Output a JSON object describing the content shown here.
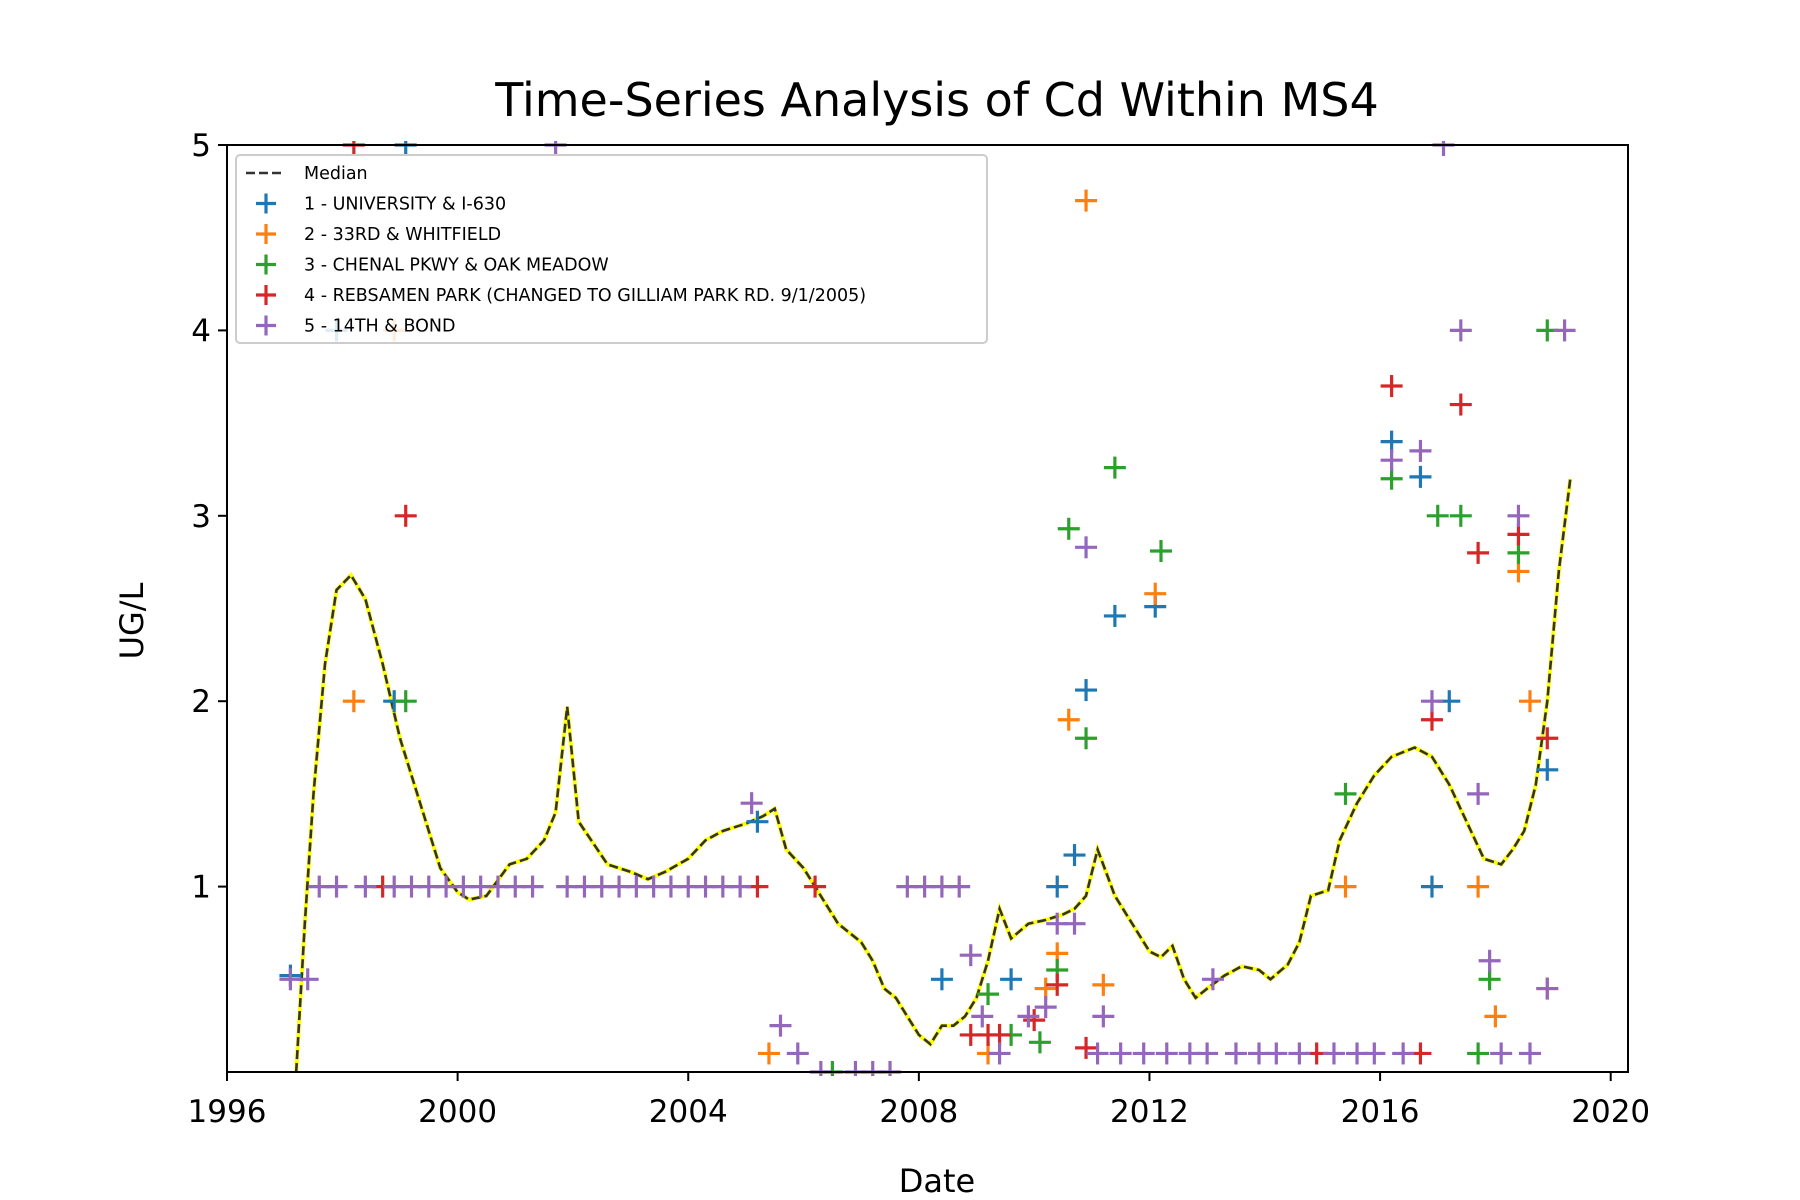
{
  "chart_data": {
    "type": "scatter",
    "title": "Time-Series Analysis of Cd Within MS4",
    "xlabel": "Date",
    "ylabel": "UG/L",
    "xlim": [
      1996,
      2020.3
    ],
    "ylim": [
      0,
      5
    ],
    "x_ticks": [
      1996,
      2000,
      2004,
      2008,
      2012,
      2016,
      2020
    ],
    "x_tick_labels": [
      "1996",
      "2000",
      "2004",
      "2008",
      "2012",
      "2016",
      "2020"
    ],
    "y_ticks": [
      1,
      2,
      3,
      4,
      5
    ],
    "y_tick_labels": [
      "1",
      "2",
      "3",
      "4",
      "5"
    ],
    "grid": false,
    "legend_position": "top-left",
    "median": {
      "name": "Median",
      "color": "#333333",
      "highlight_color": "#ffff00",
      "points": [
        [
          1997.2,
          0
        ],
        [
          1997.35,
          0.8
        ],
        [
          1997.5,
          1.5
        ],
        [
          1997.7,
          2.2
        ],
        [
          1997.9,
          2.6
        ],
        [
          1998.15,
          2.68
        ],
        [
          1998.4,
          2.55
        ],
        [
          1998.7,
          2.2
        ],
        [
          1999.0,
          1.8
        ],
        [
          1999.4,
          1.4
        ],
        [
          1999.7,
          1.1
        ],
        [
          2000.0,
          0.97
        ],
        [
          2000.2,
          0.93
        ],
        [
          2000.5,
          0.95
        ],
        [
          2000.9,
          1.12
        ],
        [
          2001.2,
          1.15
        ],
        [
          2001.5,
          1.25
        ],
        [
          2001.7,
          1.4
        ],
        [
          2001.9,
          1.97
        ],
        [
          2002.1,
          1.35
        ],
        [
          2002.6,
          1.12
        ],
        [
          2003.0,
          1.08
        ],
        [
          2003.3,
          1.04
        ],
        [
          2003.6,
          1.08
        ],
        [
          2004.0,
          1.15
        ],
        [
          2004.3,
          1.25
        ],
        [
          2004.6,
          1.3
        ],
        [
          2005.0,
          1.34
        ],
        [
          2005.3,
          1.38
        ],
        [
          2005.5,
          1.42
        ],
        [
          2005.7,
          1.2
        ],
        [
          2006.0,
          1.1
        ],
        [
          2006.3,
          0.95
        ],
        [
          2006.6,
          0.8
        ],
        [
          2007.0,
          0.7
        ],
        [
          2007.2,
          0.6
        ],
        [
          2007.4,
          0.45
        ],
        [
          2007.6,
          0.4
        ],
        [
          2007.8,
          0.3
        ],
        [
          2008.0,
          0.2
        ],
        [
          2008.2,
          0.15
        ],
        [
          2008.4,
          0.25
        ],
        [
          2008.6,
          0.25
        ],
        [
          2008.8,
          0.3
        ],
        [
          2009.0,
          0.4
        ],
        [
          2009.2,
          0.6
        ],
        [
          2009.4,
          0.88
        ],
        [
          2009.6,
          0.72
        ],
        [
          2009.9,
          0.8
        ],
        [
          2010.2,
          0.82
        ],
        [
          2010.5,
          0.85
        ],
        [
          2010.7,
          0.88
        ],
        [
          2010.9,
          0.95
        ],
        [
          2011.1,
          1.2
        ],
        [
          2011.4,
          0.95
        ],
        [
          2011.7,
          0.8
        ],
        [
          2012.0,
          0.65
        ],
        [
          2012.2,
          0.62
        ],
        [
          2012.4,
          0.68
        ],
        [
          2012.6,
          0.5
        ],
        [
          2012.8,
          0.4
        ],
        [
          2013.0,
          0.45
        ],
        [
          2013.3,
          0.52
        ],
        [
          2013.6,
          0.57
        ],
        [
          2013.9,
          0.55
        ],
        [
          2014.1,
          0.5
        ],
        [
          2014.4,
          0.58
        ],
        [
          2014.6,
          0.7
        ],
        [
          2014.8,
          0.95
        ],
        [
          2015.1,
          0.98
        ],
        [
          2015.3,
          1.25
        ],
        [
          2015.6,
          1.45
        ],
        [
          2015.9,
          1.6
        ],
        [
          2016.2,
          1.7
        ],
        [
          2016.6,
          1.75
        ],
        [
          2016.9,
          1.7
        ],
        [
          2017.2,
          1.55
        ],
        [
          2017.5,
          1.35
        ],
        [
          2017.8,
          1.15
        ],
        [
          2018.1,
          1.12
        ],
        [
          2018.3,
          1.2
        ],
        [
          2018.5,
          1.3
        ],
        [
          2018.7,
          1.55
        ],
        [
          2018.9,
          2.0
        ],
        [
          2019.1,
          2.7
        ],
        [
          2019.3,
          3.2
        ]
      ]
    },
    "series": [
      {
        "name": "1 - UNIVERSITY & I-630",
        "color": "#1f77b4",
        "points": [
          [
            1997.1,
            0.52
          ],
          [
            1997.9,
            4.0
          ],
          [
            1998.9,
            2.0
          ],
          [
            1999.1,
            5.0
          ],
          [
            2005.2,
            1.35
          ],
          [
            2008.4,
            0.5
          ],
          [
            2009.6,
            0.5
          ],
          [
            2010.4,
            1.0
          ],
          [
            2010.7,
            1.17
          ],
          [
            2010.9,
            2.06
          ],
          [
            2011.4,
            2.46
          ],
          [
            2012.1,
            2.51
          ],
          [
            2016.2,
            3.4
          ],
          [
            2016.7,
            3.21
          ],
          [
            2016.9,
            1.0
          ],
          [
            2017.2,
            2.0
          ],
          [
            2018.9,
            1.63
          ]
        ]
      },
      {
        "name": "2 - 33RD & WHITFIELD",
        "color": "#ff7f0e",
        "points": [
          [
            1998.2,
            2.0
          ],
          [
            1998.9,
            4.0
          ],
          [
            2005.4,
            0.1
          ],
          [
            2009.2,
            0.1
          ],
          [
            2010.2,
            0.45
          ],
          [
            2010.4,
            0.64
          ],
          [
            2010.6,
            1.9
          ],
          [
            2010.9,
            4.7
          ],
          [
            2011.2,
            0.47
          ],
          [
            2012.1,
            2.58
          ],
          [
            2015.4,
            1.0
          ],
          [
            2017.7,
            1.0
          ],
          [
            2018.0,
            0.3
          ],
          [
            2018.4,
            2.7
          ],
          [
            2018.6,
            2.0
          ],
          [
            2018.9,
            0.45
          ]
        ]
      },
      {
        "name": "3 - CHENAL PKWY & OAK MEADOW",
        "color": "#2ca02c",
        "points": [
          [
            1999.1,
            2.0
          ],
          [
            2006.5,
            0.0
          ],
          [
            2009.2,
            0.42
          ],
          [
            2009.6,
            0.2
          ],
          [
            2010.1,
            0.16
          ],
          [
            2010.4,
            0.55
          ],
          [
            2010.6,
            2.93
          ],
          [
            2010.9,
            1.8
          ],
          [
            2011.4,
            3.26
          ],
          [
            2012.2,
            2.81
          ],
          [
            2015.4,
            1.5
          ],
          [
            2016.2,
            3.2
          ],
          [
            2017.0,
            3.0
          ],
          [
            2017.4,
            3.0
          ],
          [
            2017.7,
            0.1
          ],
          [
            2017.9,
            0.5
          ],
          [
            2018.4,
            2.8
          ],
          [
            2018.9,
            4.0
          ]
        ]
      },
      {
        "name": "4 - REBSAMEN PARK (CHANGED TO GILLIAM PARK RD. 9/1/2005)",
        "color": "#d62728",
        "points": [
          [
            1998.2,
            5.0
          ],
          [
            1998.7,
            1.0
          ],
          [
            1999.1,
            3.0
          ],
          [
            2005.2,
            1.0
          ],
          [
            2006.2,
            1.0
          ],
          [
            2008.9,
            0.2
          ],
          [
            2009.2,
            0.2
          ],
          [
            2009.4,
            0.2
          ],
          [
            2010.0,
            0.28
          ],
          [
            2010.4,
            0.47
          ],
          [
            2010.9,
            0.13
          ],
          [
            2014.9,
            0.1
          ],
          [
            2016.2,
            3.7
          ],
          [
            2016.7,
            0.1
          ],
          [
            2016.9,
            1.9
          ],
          [
            2017.4,
            3.6
          ],
          [
            2017.7,
            2.8
          ],
          [
            2018.4,
            2.9
          ],
          [
            2018.9,
            1.8
          ]
        ]
      },
      {
        "name": "5 - 14TH & BOND",
        "color": "#9467bd",
        "points": [
          [
            1997.1,
            0.5
          ],
          [
            1997.4,
            0.5
          ],
          [
            1997.6,
            1.0
          ],
          [
            1997.9,
            1.0
          ],
          [
            1998.4,
            1.0
          ],
          [
            1998.9,
            1.0
          ],
          [
            1999.2,
            1.0
          ],
          [
            1999.5,
            1.0
          ],
          [
            1999.8,
            1.0
          ],
          [
            2000.1,
            1.0
          ],
          [
            2000.4,
            1.0
          ],
          [
            2000.7,
            1.0
          ],
          [
            2001.0,
            1.0
          ],
          [
            2001.3,
            1.0
          ],
          [
            2001.7,
            5.0
          ],
          [
            2001.9,
            1.0
          ],
          [
            2002.2,
            1.0
          ],
          [
            2002.5,
            1.0
          ],
          [
            2002.8,
            1.0
          ],
          [
            2003.1,
            1.0
          ],
          [
            2003.4,
            1.0
          ],
          [
            2003.7,
            1.0
          ],
          [
            2004.0,
            1.0
          ],
          [
            2004.3,
            1.0
          ],
          [
            2004.6,
            1.0
          ],
          [
            2004.9,
            1.0
          ],
          [
            2005.1,
            1.45
          ],
          [
            2005.6,
            0.25
          ],
          [
            2005.9,
            0.1
          ],
          [
            2006.3,
            0.0
          ],
          [
            2006.9,
            0.0
          ],
          [
            2007.2,
            0.0
          ],
          [
            2007.5,
            0.0
          ],
          [
            2007.8,
            1.0
          ],
          [
            2008.1,
            1.0
          ],
          [
            2008.4,
            1.0
          ],
          [
            2008.7,
            1.0
          ],
          [
            2008.9,
            0.63
          ],
          [
            2009.1,
            0.3
          ],
          [
            2009.4,
            0.1
          ],
          [
            2009.9,
            0.3
          ],
          [
            2010.2,
            0.35
          ],
          [
            2010.4,
            0.8
          ],
          [
            2010.7,
            0.8
          ],
          [
            2010.9,
            2.83
          ],
          [
            2011.2,
            0.3
          ],
          [
            2011.1,
            0.1
          ],
          [
            2011.5,
            0.1
          ],
          [
            2011.9,
            0.1
          ],
          [
            2012.3,
            0.1
          ],
          [
            2012.7,
            0.1
          ],
          [
            2013.0,
            0.1
          ],
          [
            2013.1,
            0.5
          ],
          [
            2013.5,
            0.1
          ],
          [
            2013.9,
            0.1
          ],
          [
            2014.2,
            0.1
          ],
          [
            2014.6,
            0.1
          ],
          [
            2015.2,
            0.1
          ],
          [
            2015.6,
            0.1
          ],
          [
            2015.9,
            0.1
          ],
          [
            2016.2,
            3.3
          ],
          [
            2016.4,
            0.1
          ],
          [
            2016.7,
            3.35
          ],
          [
            2016.9,
            2.0
          ],
          [
            2017.1,
            5.0
          ],
          [
            2017.4,
            4.0
          ],
          [
            2017.7,
            1.5
          ],
          [
            2017.9,
            0.6
          ],
          [
            2018.1,
            0.1
          ],
          [
            2018.4,
            3.0
          ],
          [
            2018.6,
            0.1
          ],
          [
            2018.9,
            0.45
          ],
          [
            2019.2,
            4.0
          ]
        ]
      }
    ]
  }
}
